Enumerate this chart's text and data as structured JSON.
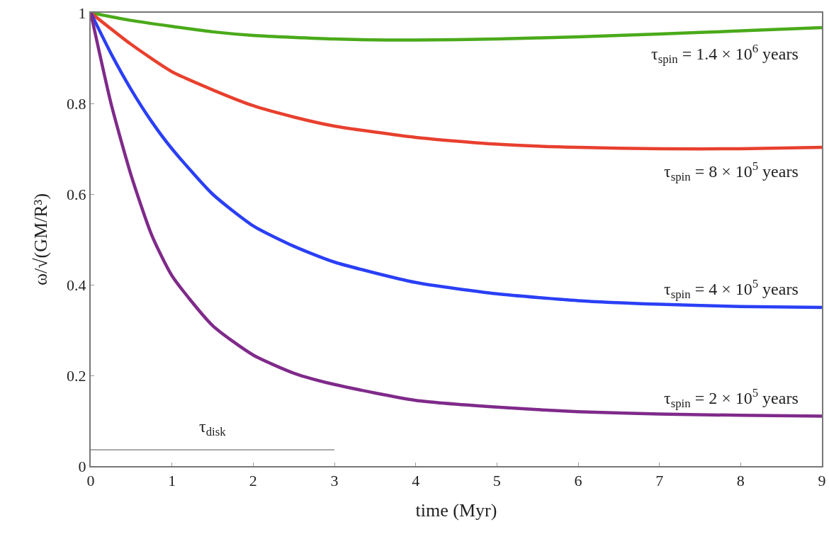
{
  "chart_data": {
    "type": "line",
    "xlabel": "time (Myr)",
    "ylabel": "ω/√(GM/R³)",
    "xlim": [
      0,
      9
    ],
    "xticks": [
      0,
      1,
      2,
      3,
      4,
      5,
      6,
      7,
      8,
      9
    ],
    "ylim": [
      0,
      1
    ],
    "yticks": [
      0,
      0.2,
      0.4,
      0.6,
      0.8,
      1
    ],
    "grid": false,
    "marker": "none",
    "line_style": "solid",
    "series": [
      {
        "color": "#4aaa1a",
        "x": [
          0,
          0.5,
          1,
          1.5,
          2,
          3,
          4,
          5,
          6,
          7,
          8,
          9
        ],
        "values": [
          1,
          0.983,
          0.97,
          0.958,
          0.95,
          0.942,
          0.94,
          0.942,
          0.947,
          0.953,
          0.96,
          0.967
        ]
      },
      {
        "color": "#e8402e",
        "x": [
          0,
          0.5,
          1,
          1.5,
          2,
          2.5,
          3,
          4,
          5,
          6,
          7,
          8,
          9
        ],
        "values": [
          1,
          0.93,
          0.87,
          0.83,
          0.795,
          0.77,
          0.75,
          0.725,
          0.71,
          0.703,
          0.7,
          0.7,
          0.703
        ]
      },
      {
        "color": "#2a3ff5",
        "x": [
          0,
          0.25,
          0.5,
          0.75,
          1,
          1.5,
          2,
          2.5,
          3,
          4,
          5,
          6,
          7,
          8,
          9
        ],
        "values": [
          1,
          0.91,
          0.83,
          0.76,
          0.7,
          0.6,
          0.53,
          0.485,
          0.45,
          0.405,
          0.38,
          0.365,
          0.357,
          0.352,
          0.35
        ]
      },
      {
        "color": "#7f2a8a",
        "x": [
          0,
          0.25,
          0.5,
          0.75,
          1,
          1.5,
          2,
          2.5,
          3,
          4,
          5,
          6,
          7,
          8,
          9
        ],
        "values": [
          1,
          0.8,
          0.64,
          0.51,
          0.42,
          0.31,
          0.245,
          0.205,
          0.18,
          0.145,
          0.13,
          0.12,
          0.115,
          0.112,
          0.11
        ]
      },
      {
        "type": "line",
        "color": "#aaaaaa",
        "x": [
          0,
          3
        ],
        "values": [
          0.036,
          0.036
        ]
      }
    ],
    "annotations": [
      "τ$_{spin}$ = 1.4 × 10$^{6}$ years",
      "τ$_{spin}$ = 8 × 10$^{5}$ years",
      "τ$_{spin}$ = 4 × 10$^{5}$ years",
      "τ$_{spin}$ = 2 × 10$^{5}$ years",
      "τ$_{disk}$"
    ]
  }
}
